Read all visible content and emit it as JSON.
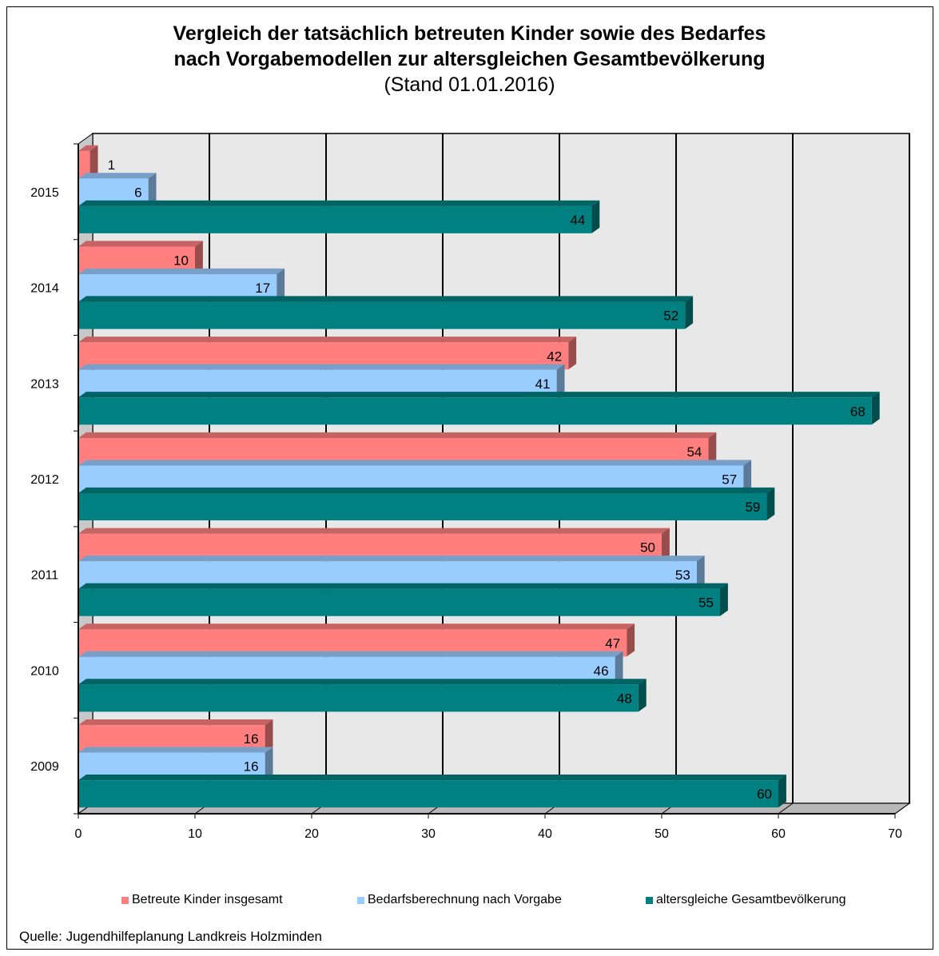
{
  "chart_data": {
    "type": "bar",
    "orientation": "horizontal",
    "title": "Vergleich der tatsächlich betreuten Kinder sowie des Bedarfes",
    "title_line2": "nach Vorgabemodellen zur altersgleichen Gesamtbevölkerung",
    "subtitle": "(Stand 01.01.2016)",
    "categories": [
      "2015",
      "2014",
      "2013",
      "2012",
      "2011",
      "2010",
      "2009"
    ],
    "series": [
      {
        "name": "Betreute Kinder insgesamt",
        "color": "#ff7f7f",
        "values": [
          1,
          10,
          42,
          54,
          50,
          47,
          16
        ]
      },
      {
        "name": "Bedarfsberechnung nach Vorgabe",
        "color": "#99ccff",
        "values": [
          6,
          17,
          41,
          57,
          53,
          46,
          16
        ]
      },
      {
        "name": "altersgleiche Gesamtbevölkerung",
        "color": "#008080",
        "values": [
          44,
          52,
          68,
          59,
          55,
          48,
          60
        ]
      }
    ],
    "xlim": [
      0,
      70
    ],
    "xticks": [
      0,
      10,
      20,
      30,
      40,
      50,
      60,
      70
    ],
    "grid": true,
    "legend_position": "bottom"
  },
  "source": "Quelle: Jugendhilfeplanung Landkreis Holzminden"
}
